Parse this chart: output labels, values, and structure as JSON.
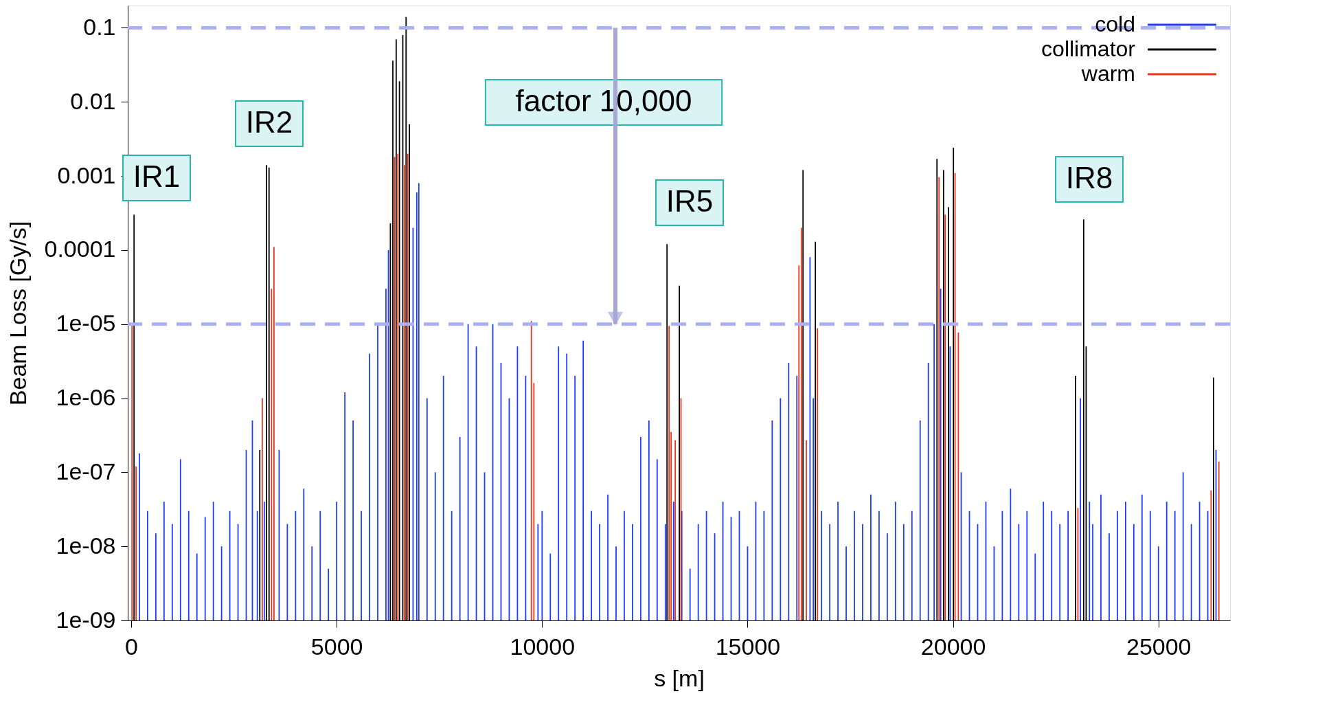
{
  "chart_data": {
    "type": "bar",
    "xlabel": "s [m]",
    "ylabel": "Beam Loss [Gy/s]",
    "log": "y",
    "grid": false,
    "legend": "top right",
    "xlim": [
      0,
      26659
    ],
    "xticks": [
      0,
      5000,
      10000,
      15000,
      20000,
      25000
    ],
    "ylim": [
      1e-09,
      0.2
    ],
    "yticks": [
      {
        "value": 1e-09,
        "label": "1e-09"
      },
      {
        "value": 1e-08,
        "label": "1e-08"
      },
      {
        "value": 1e-07,
        "label": "1e-07"
      },
      {
        "value": 1e-06,
        "label": "1e-06"
      },
      {
        "value": 1e-05,
        "label": "1e-05"
      },
      0.0001,
      0.001,
      0.01,
      0.1
    ],
    "series": [
      {
        "name": "cold",
        "color": "#1f3cff",
        "x": [
          200,
          400,
          600,
          800,
          1000,
          1200,
          1400,
          1600,
          1800,
          2000,
          2200,
          2400,
          2600,
          2800,
          2950,
          3070,
          3240,
          3600,
          3800,
          4000,
          4200,
          4400,
          4600,
          4800,
          5000,
          5200,
          5400,
          5600,
          5800,
          6000,
          6200,
          6260,
          6860,
          6950,
          7000,
          7200,
          7400,
          7600,
          7800,
          8000,
          8200,
          8400,
          8600,
          8800,
          9000,
          9200,
          9400,
          9600,
          9900,
          10000,
          10200,
          10400,
          10600,
          10800,
          11000,
          11200,
          11400,
          11600,
          11800,
          12000,
          12200,
          12400,
          12600,
          12800,
          13000,
          13200,
          13400,
          13600,
          13800,
          14000,
          14200,
          14400,
          14600,
          14800,
          15000,
          15200,
          15400,
          15600,
          15800,
          16000,
          16200,
          16520,
          16600,
          16800,
          17000,
          17200,
          17400,
          17600,
          17800,
          18000,
          18200,
          18400,
          18600,
          18800,
          19000,
          19200,
          19400,
          19540,
          19700,
          19930,
          20200,
          20400,
          20600,
          20800,
          21000,
          21200,
          21400,
          21600,
          21800,
          22000,
          22200,
          22400,
          22600,
          22800,
          23100,
          23320,
          23400,
          23600,
          23800,
          24000,
          24200,
          24400,
          24600,
          24800,
          25000,
          25200,
          25400,
          25600,
          25800,
          26000,
          26200,
          26400
        ],
        "values": [
          1.8e-07,
          3e-08,
          1.5e-08,
          4e-08,
          2e-08,
          1.5e-07,
          3e-08,
          8e-09,
          2.5e-08,
          4e-08,
          1e-08,
          3e-08,
          2e-08,
          2e-07,
          5e-07,
          3e-08,
          4e-08,
          2e-07,
          2e-08,
          3e-08,
          6e-08,
          1e-08,
          3e-08,
          5e-09,
          4e-08,
          1.2e-06,
          5e-07,
          3e-08,
          4e-06,
          1e-05,
          3e-05,
          0.0001,
          0.0002,
          0.0006,
          0.0008,
          1e-06,
          1e-07,
          2e-06,
          3e-08,
          3e-07,
          1e-05,
          5e-06,
          1e-07,
          1e-05,
          3e-06,
          1e-06,
          5e-06,
          2e-06,
          2e-08,
          3e-08,
          8e-09,
          5e-06,
          4e-06,
          2e-06,
          6e-06,
          3e-08,
          2e-08,
          5e-08,
          1e-08,
          3e-08,
          2e-08,
          3e-07,
          5e-07,
          1.5e-07,
          2e-08,
          4e-08,
          3e-08,
          5e-09,
          2e-08,
          3e-08,
          1.5e-08,
          4e-08,
          2.5e-08,
          3e-08,
          1e-08,
          4e-08,
          3e-08,
          5e-07,
          1e-06,
          3e-06,
          2e-06,
          8e-05,
          1e-06,
          3e-08,
          2e-08,
          4e-08,
          1e-08,
          3e-08,
          2e-08,
          5e-08,
          3e-08,
          1.5e-08,
          4e-08,
          2e-08,
          3e-08,
          5e-07,
          3e-06,
          1e-05,
          3e-05,
          5e-06,
          1e-07,
          3e-08,
          2e-08,
          4e-08,
          1e-08,
          3e-08,
          6e-08,
          2e-08,
          3e-08,
          8e-09,
          4e-08,
          3e-08,
          2e-08,
          3e-08,
          1e-06,
          4e-08,
          2e-08,
          5e-08,
          1.5e-08,
          3e-08,
          4e-08,
          2e-08,
          5e-08,
          3e-08,
          1e-08,
          4e-08,
          3e-08,
          1e-07,
          2e-08,
          4e-08,
          3e-08,
          2e-07
        ]
      },
      {
        "name": "collimator",
        "color": "#000000",
        "x": [
          70,
          3130,
          3295,
          3355,
          6308,
          6368,
          6449,
          6529,
          6610,
          6690,
          6770,
          13040,
          13340,
          16350,
          16650,
          19610,
          19770,
          19890,
          20010,
          22980,
          23180,
          23240,
          26340
        ],
        "values": [
          0.0003,
          2e-07,
          0.0014,
          0.0013,
          0.00023,
          0.036,
          0.07,
          0.019,
          0.08,
          0.14,
          0.005,
          0.00012,
          3.3e-05,
          0.0012,
          0.00013,
          0.0017,
          0.0012,
          0.00038,
          0.0024,
          2e-06,
          0.00026,
          5e-06,
          1.9e-06
        ]
      },
      {
        "name": "warm",
        "color": "#e8361c",
        "x": [
          20,
          120,
          3190,
          3415,
          3475,
          6410,
          6490,
          6650,
          6730,
          9740,
          9800,
          13090,
          13140,
          13240,
          13380,
          16250,
          16310,
          16430,
          16700,
          19660,
          19810,
          20050,
          20130,
          23040,
          26280,
          26470
        ],
        "values": [
          1e-05,
          1.2e-07,
          1e-06,
          3e-05,
          0.00011,
          0.0018,
          0.002,
          0.0014,
          0.002,
          1.1e-05,
          1.6e-06,
          9.5e-06,
          3.5e-07,
          2.7e-07,
          1e-06,
          6.2e-05,
          0.0002,
          2.7e-07,
          8.8e-06,
          0.00096,
          0.0003,
          0.0011,
          7.7e-06,
          3.3e-08,
          5.7e-08,
          1.4e-07
        ]
      }
    ],
    "ref_lines": [
      {
        "axis": "y",
        "value": 0.1,
        "color": "#aab0f0",
        "line_style": "dashed"
      },
      {
        "axis": "y",
        "value": 1e-05,
        "color": "#aab0f0",
        "line_style": "dashed"
      }
    ],
    "annotations": [
      "IR1",
      "IR2",
      "factor 10,000",
      "IR5",
      "IR8"
    ]
  }
}
